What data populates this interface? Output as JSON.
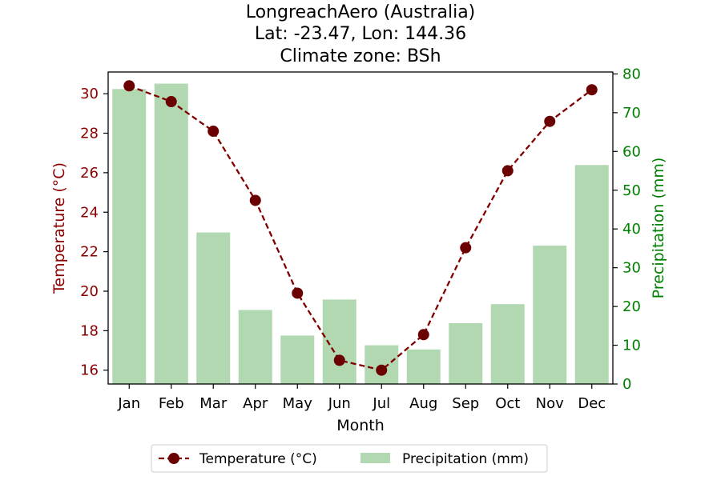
{
  "chart_data": {
    "type": "bar",
    "title_lines": [
      "LongreachAero (Australia)",
      "Lat: -23.47, Lon: 144.36",
      "Climate zone: BSh"
    ],
    "xlabel": "Month",
    "ylabel_left": "Temperature (°C)",
    "ylabel_right": "Precipitation (mm)",
    "categories": [
      "Jan",
      "Feb",
      "Mar",
      "Apr",
      "May",
      "Jun",
      "Jul",
      "Aug",
      "Sep",
      "Oct",
      "Nov",
      "Dec"
    ],
    "ylim_left": [
      15.3,
      31.1
    ],
    "ylim_right": [
      0,
      80.5
    ],
    "yticks_left": [
      16,
      18,
      20,
      22,
      24,
      26,
      28,
      30
    ],
    "yticks_right": [
      0,
      10,
      20,
      30,
      40,
      50,
      60,
      70,
      80
    ],
    "series": [
      {
        "name": "Temperature (°C)",
        "kind": "line",
        "axis": "left",
        "style": "dashed with circle markers",
        "color": "#800000",
        "values": [
          30.4,
          29.6,
          28.1,
          24.6,
          19.9,
          16.5,
          16.0,
          17.8,
          22.2,
          26.1,
          28.6,
          30.2
        ]
      },
      {
        "name": "Precipitation (mm)",
        "kind": "bar",
        "axis": "right",
        "color": "#b2d8b2",
        "values": [
          76.1,
          77.5,
          39.1,
          19.1,
          12.5,
          21.8,
          10.0,
          8.9,
          15.7,
          20.6,
          35.7,
          56.5
        ]
      }
    ],
    "left_axis_color": "#8b0000",
    "right_axis_color": "#008000",
    "legend_placement": "bottom-center",
    "grid": false
  }
}
